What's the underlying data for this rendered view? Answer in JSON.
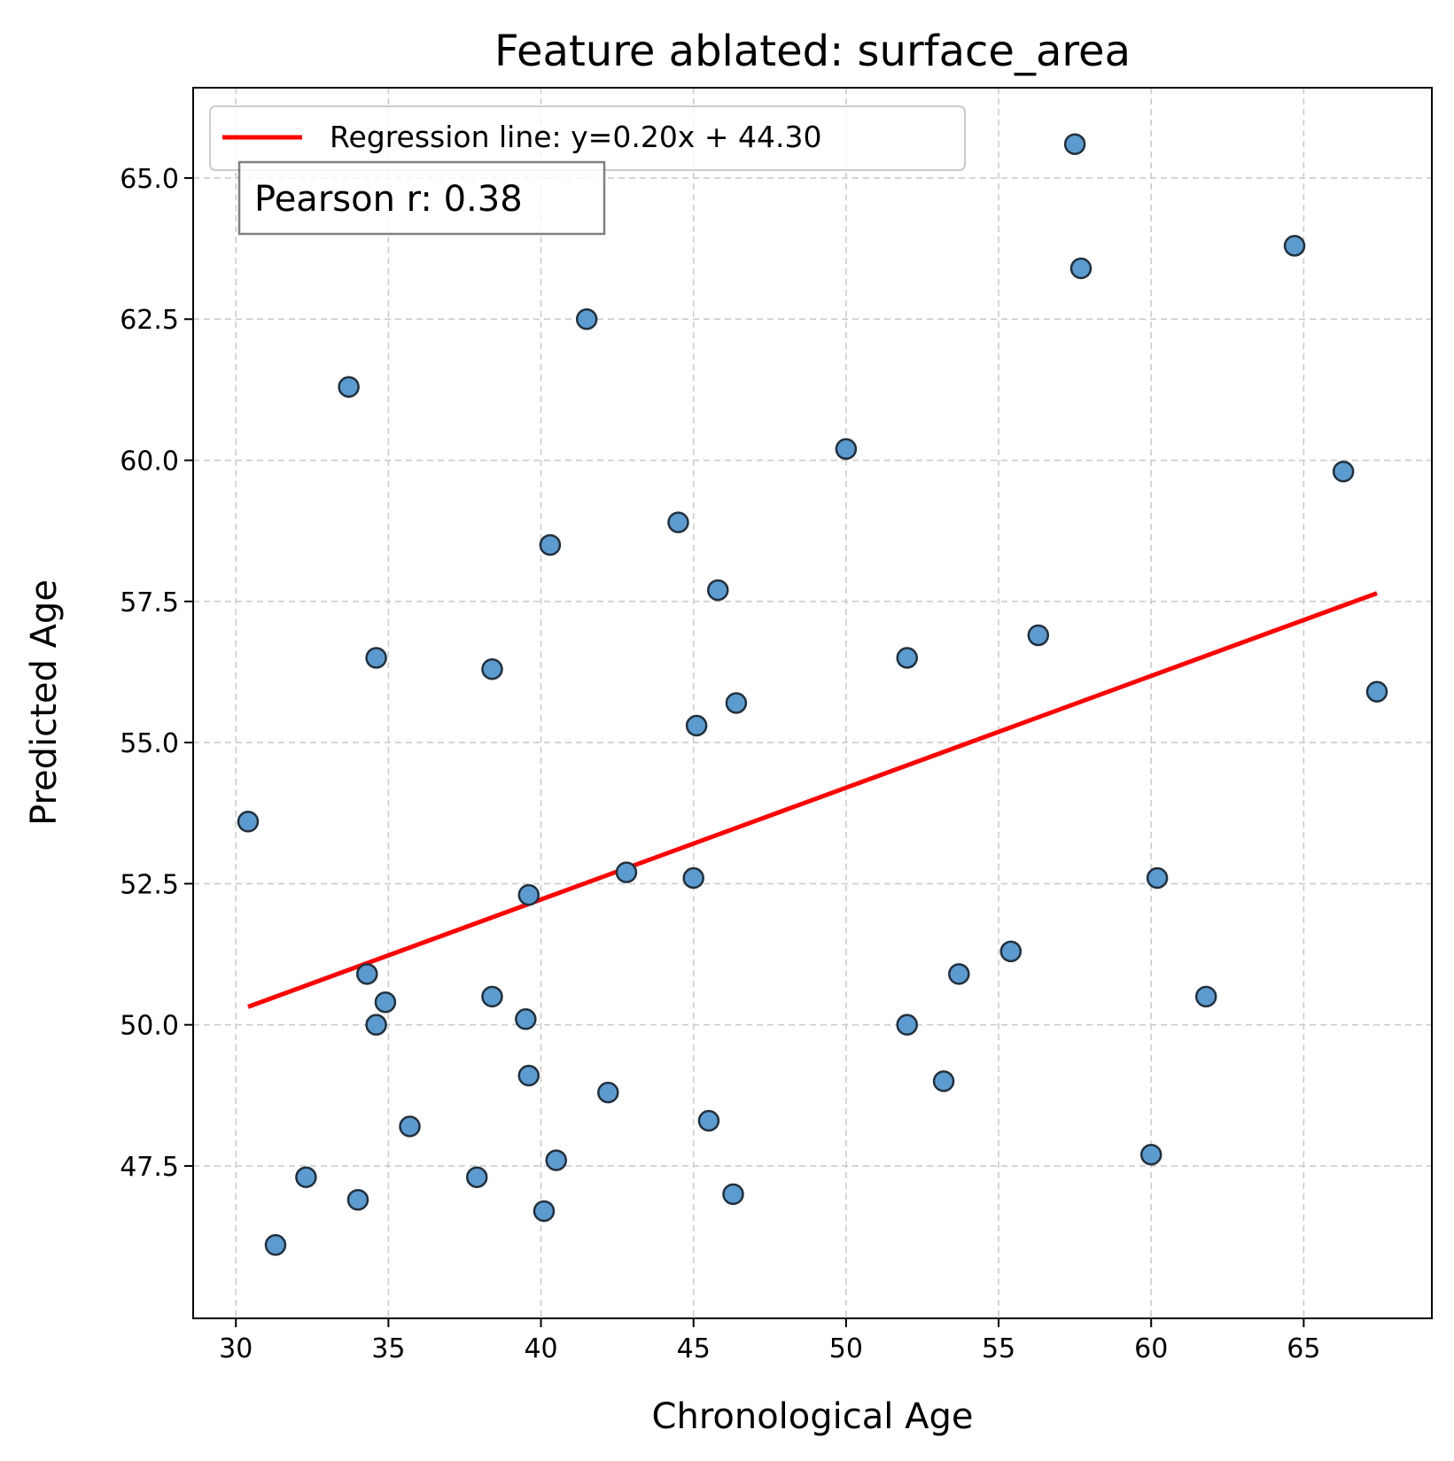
{
  "chart_data": {
    "type": "scatter",
    "title": "Feature ablated: surface_area",
    "xlabel": "Chronological Age",
    "ylabel": "Predicted Age",
    "xlim": [
      28.6,
      69.2
    ],
    "ylim": [
      44.8,
      66.6
    ],
    "xticks": [
      30,
      35,
      40,
      45,
      50,
      55,
      60,
      65
    ],
    "xtick_labels": [
      "30",
      "35",
      "40",
      "45",
      "50",
      "55",
      "60",
      "65"
    ],
    "yticks": [
      47.5,
      50.0,
      52.5,
      55.0,
      57.5,
      60.0,
      62.5,
      65.0
    ],
    "ytick_labels": [
      "47.5",
      "50.0",
      "52.5",
      "55.0",
      "57.5",
      "60.0",
      "62.5",
      "65.0"
    ],
    "grid": true,
    "legend_position": "top-left",
    "annotation": "Pearson r: 0.38",
    "colors": {
      "points": "#5b9bd0",
      "point_edge": "#22303c",
      "regression": "#ff0000",
      "grid": "#cccccc"
    },
    "regression": {
      "name": "Regression line: y=0.20x + 44.30",
      "slope": 0.198,
      "intercept": 44.3,
      "x_range": [
        30.4,
        67.4
      ]
    },
    "series": [
      {
        "points": [
          [
            30.4,
            53.6
          ],
          [
            31.3,
            46.1
          ],
          [
            32.3,
            47.3
          ],
          [
            33.7,
            61.3
          ],
          [
            34.0,
            46.9
          ],
          [
            34.3,
            50.9
          ],
          [
            34.6,
            56.5
          ],
          [
            34.6,
            50.0
          ],
          [
            34.9,
            50.4
          ],
          [
            35.7,
            48.2
          ],
          [
            37.9,
            47.3
          ],
          [
            38.4,
            56.3
          ],
          [
            38.4,
            50.5
          ],
          [
            39.5,
            50.1
          ],
          [
            39.6,
            52.3
          ],
          [
            39.6,
            49.1
          ],
          [
            40.1,
            46.7
          ],
          [
            40.3,
            58.5
          ],
          [
            40.5,
            47.6
          ],
          [
            41.5,
            62.5
          ],
          [
            42.2,
            48.8
          ],
          [
            42.8,
            52.7
          ],
          [
            44.5,
            58.9
          ],
          [
            45.0,
            52.6
          ],
          [
            45.1,
            55.3
          ],
          [
            45.5,
            48.3
          ],
          [
            45.8,
            57.7
          ],
          [
            46.3,
            47.0
          ],
          [
            46.4,
            55.7
          ],
          [
            50.0,
            60.2
          ],
          [
            52.0,
            56.5
          ],
          [
            52.0,
            50.0
          ],
          [
            53.2,
            49.0
          ],
          [
            53.7,
            50.9
          ],
          [
            55.4,
            51.3
          ],
          [
            56.3,
            56.9
          ],
          [
            57.5,
            65.6
          ],
          [
            57.7,
            63.4
          ],
          [
            60.0,
            47.7
          ],
          [
            60.2,
            52.6
          ],
          [
            61.8,
            50.5
          ],
          [
            64.7,
            63.8
          ],
          [
            66.3,
            59.8
          ],
          [
            67.4,
            55.9
          ]
        ]
      }
    ]
  }
}
